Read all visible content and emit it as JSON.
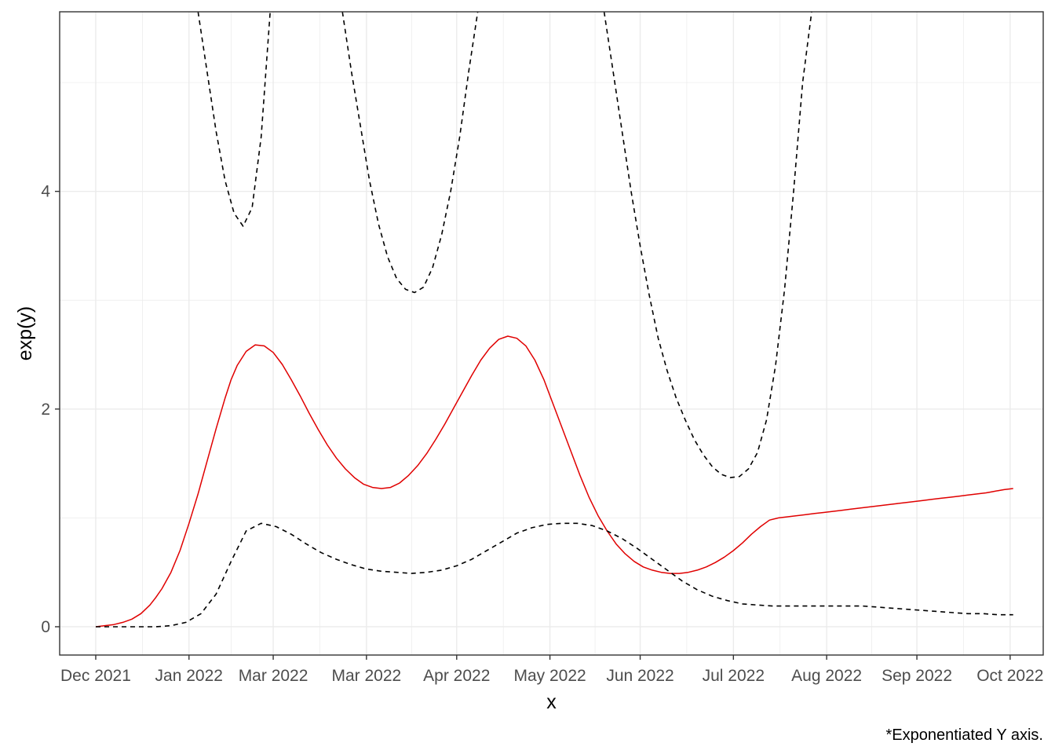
{
  "chart_data": {
    "type": "line",
    "xlabel": "x",
    "ylabel": "exp(y)",
    "caption": "*Exponentiated Y axis.",
    "x_ticks": [
      "Dec 2021",
      "Jan 2022",
      "Mar 2022",
      "Mar 2022",
      "Apr 2022",
      "May 2022",
      "Jun 2022",
      "Jul 2022",
      "Aug 2022",
      "Sep 2022",
      "Oct 2022"
    ],
    "y_ticks": [
      0,
      2,
      4
    ],
    "ylim": [
      -0.26,
      5.65
    ],
    "grid": true,
    "colors": {
      "estimate": "#e00000",
      "bounds": "#000000",
      "grid": "#ebebeb",
      "panel_border": "#333333"
    },
    "series": [
      {
        "role": "estimate",
        "x": [
          0,
          3,
          6,
          9,
          12,
          15,
          18,
          20,
          22,
          25,
          28,
          31,
          34,
          37,
          40,
          43,
          45,
          47,
          50,
          53,
          56,
          59,
          62,
          65,
          68,
          71,
          74,
          77,
          80,
          83,
          86,
          89,
          92,
          95,
          98,
          101,
          104,
          107,
          110,
          113,
          116,
          119,
          122,
          125,
          128,
          131,
          134,
          137,
          140,
          143,
          146,
          149,
          152,
          155,
          158,
          161,
          164,
          167,
          170,
          173,
          176,
          179,
          182,
          185,
          188,
          191,
          194,
          197,
          200,
          203,
          206,
          209,
          212,
          215,
          218,
          221,
          224,
          227,
          230,
          233,
          236,
          239,
          242,
          245,
          248,
          251,
          254,
          257,
          260,
          263,
          266,
          269,
          272,
          275,
          278,
          281,
          284,
          287,
          290,
          293,
          296,
          298,
          300,
          302,
          305
        ],
        "y": [
          0,
          0.01,
          0.02,
          0.04,
          0.07,
          0.12,
          0.2,
          0.27,
          0.35,
          0.5,
          0.7,
          0.95,
          1.22,
          1.52,
          1.82,
          2.1,
          2.27,
          2.4,
          2.53,
          2.59,
          2.58,
          2.52,
          2.41,
          2.27,
          2.12,
          1.96,
          1.81,
          1.67,
          1.55,
          1.45,
          1.37,
          1.31,
          1.28,
          1.27,
          1.28,
          1.32,
          1.39,
          1.48,
          1.59,
          1.72,
          1.86,
          2.01,
          2.16,
          2.31,
          2.45,
          2.56,
          2.64,
          2.67,
          2.65,
          2.58,
          2.45,
          2.27,
          2.05,
          1.83,
          1.61,
          1.39,
          1.19,
          1.02,
          0.88,
          0.76,
          0.67,
          0.6,
          0.55,
          0.52,
          0.5,
          0.49,
          0.49,
          0.5,
          0.52,
          0.55,
          0.59,
          0.64,
          0.7,
          0.77,
          0.85,
          0.92,
          0.98,
          1.0,
          1.01,
          1.02,
          1.03,
          1.04,
          1.05,
          1.06,
          1.07,
          1.08,
          1.09,
          1.1,
          1.11,
          1.12,
          1.13,
          1.14,
          1.15,
          1.16,
          1.17,
          1.18,
          1.19,
          1.2,
          1.21,
          1.22,
          1.23,
          1.24,
          1.25,
          1.26,
          1.27
        ]
      },
      {
        "role": "upper",
        "x": [
          34,
          37,
          40,
          43,
          46,
          49,
          52,
          55,
          58,
          61,
          64,
          67,
          70,
          73,
          76,
          79,
          82,
          85,
          88,
          91,
          94,
          97,
          100,
          103,
          106,
          109,
          112,
          115,
          118,
          121,
          124,
          127,
          130,
          133,
          136,
          139,
          142,
          145,
          148,
          151,
          154,
          157,
          160,
          163,
          166,
          169,
          172,
          175,
          178,
          181,
          184,
          187,
          190,
          193,
          196,
          199,
          202,
          205,
          208,
          211,
          214,
          217,
          220,
          223,
          226,
          229,
          232,
          235,
          238,
          241,
          244,
          247,
          250,
          253,
          256,
          259,
          262,
          265,
          268,
          271,
          274,
          277,
          280,
          283,
          286,
          289,
          292,
          295,
          298,
          301,
          304
        ],
        "y": [
          5.65,
          5.1,
          4.55,
          4.1,
          3.8,
          3.68,
          3.85,
          4.5,
          5.65,
          null,
          null,
          null,
          null,
          null,
          null,
          null,
          5.65,
          5.1,
          4.6,
          4.1,
          3.7,
          3.4,
          3.2,
          3.1,
          3.07,
          3.12,
          3.3,
          3.6,
          4.0,
          4.5,
          5.1,
          5.65,
          null,
          null,
          null,
          null,
          null,
          null,
          null,
          null,
          null,
          null,
          null,
          null,
          null,
          5.65,
          5.1,
          4.55,
          4.0,
          3.5,
          3.05,
          2.65,
          2.35,
          2.1,
          1.9,
          1.72,
          1.58,
          1.47,
          1.4,
          1.37,
          1.38,
          1.45,
          1.6,
          1.9,
          2.4,
          3.1,
          4.0,
          5.0,
          5.65,
          null,
          null,
          null,
          null,
          null,
          null,
          null,
          null,
          null,
          null,
          null,
          null,
          null,
          null,
          null,
          null,
          null,
          null,
          null,
          null,
          null,
          null
        ]
      },
      {
        "role": "lower",
        "x": [
          0,
          10,
          20,
          25,
          30,
          35,
          40,
          45,
          50,
          55,
          60,
          65,
          70,
          75,
          80,
          85,
          90,
          95,
          100,
          105,
          110,
          115,
          120,
          125,
          130,
          135,
          140,
          145,
          150,
          155,
          160,
          165,
          170,
          175,
          180,
          185,
          190,
          195,
          200,
          205,
          210,
          215,
          220,
          225,
          230,
          235,
          240,
          245,
          250,
          255,
          260,
          265,
          270,
          275,
          280,
          285,
          290,
          295,
          300,
          305
        ],
        "y": [
          0,
          0,
          0,
          0.01,
          0.04,
          0.12,
          0.3,
          0.6,
          0.88,
          0.95,
          0.92,
          0.85,
          0.76,
          0.68,
          0.62,
          0.57,
          0.53,
          0.51,
          0.5,
          0.49,
          0.5,
          0.52,
          0.56,
          0.62,
          0.7,
          0.78,
          0.86,
          0.91,
          0.94,
          0.95,
          0.95,
          0.93,
          0.88,
          0.81,
          0.72,
          0.62,
          0.52,
          0.42,
          0.34,
          0.28,
          0.24,
          0.21,
          0.2,
          0.19,
          0.19,
          0.19,
          0.19,
          0.19,
          0.19,
          0.19,
          0.18,
          0.17,
          0.16,
          0.15,
          0.14,
          0.13,
          0.12,
          0.12,
          0.11,
          0.11
        ]
      }
    ]
  }
}
